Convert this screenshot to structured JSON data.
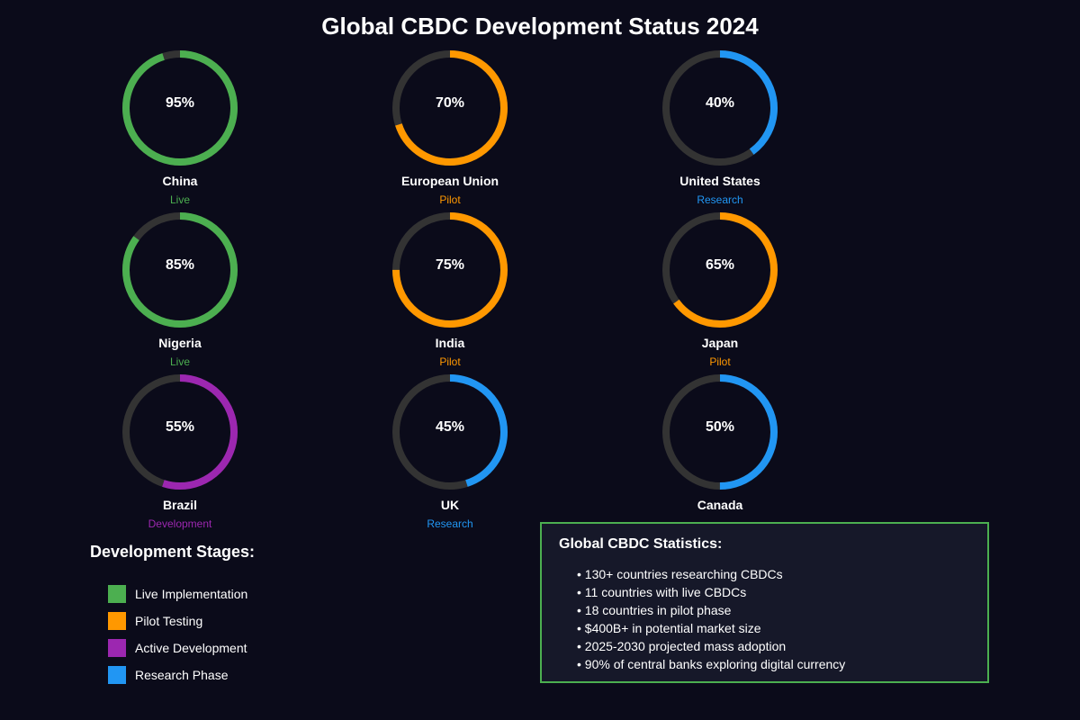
{
  "title": "Global CBDC Development Status 2024",
  "colors": {
    "live": "#4caf50",
    "pilot": "#ff9800",
    "development": "#9c27b0",
    "research": "#2196f3",
    "track": "#333333"
  },
  "chart_data": {
    "type": "gauge",
    "title": "Global CBDC Development Status 2024",
    "range": [
      0,
      100
    ],
    "items": [
      {
        "country": "China",
        "value": 95,
        "label": "95%",
        "stage": "Live",
        "category": "live"
      },
      {
        "country": "European Union",
        "value": 70,
        "label": "70%",
        "stage": "Pilot",
        "category": "pilot"
      },
      {
        "country": "United States",
        "value": 40,
        "label": "40%",
        "stage": "Research",
        "category": "research"
      },
      {
        "country": "Nigeria",
        "value": 85,
        "label": "85%",
        "stage": "Live",
        "category": "live"
      },
      {
        "country": "India",
        "value": 75,
        "label": "75%",
        "stage": "Pilot",
        "category": "pilot"
      },
      {
        "country": "Japan",
        "value": 65,
        "label": "65%",
        "stage": "Pilot",
        "category": "pilot"
      },
      {
        "country": "Brazil",
        "value": 55,
        "label": "55%",
        "stage": "Development",
        "category": "development"
      },
      {
        "country": "UK",
        "value": 45,
        "label": "45%",
        "stage": "Research",
        "category": "research"
      },
      {
        "country": "Canada",
        "value": 50,
        "label": "50%",
        "stage": "",
        "category": "research"
      }
    ]
  },
  "legend": {
    "title": "Development Stages:",
    "items": [
      {
        "label": "Live Implementation",
        "category": "live"
      },
      {
        "label": "Pilot Testing",
        "category": "pilot"
      },
      {
        "label": "Active Development",
        "category": "development"
      },
      {
        "label": "Research Phase",
        "category": "research"
      }
    ]
  },
  "stats": {
    "title": "Global CBDC Statistics:",
    "items": [
      "• 130+ countries researching CBDCs",
      "• 11 countries with live CBDCs",
      "• 18 countries in pilot phase",
      "• $400B+ in potential market size",
      "• 2025-2030 projected mass adoption",
      "• 90% of central banks exploring digital currency"
    ]
  }
}
